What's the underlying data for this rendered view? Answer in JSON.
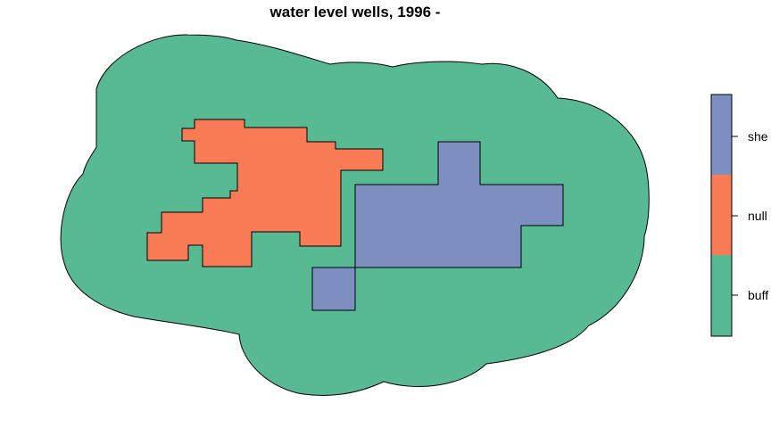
{
  "title": "water level wells,  1996 -",
  "colors": {
    "buffer": "#58BA93",
    "null": "#F97B55",
    "shell": "#7C8FC0",
    "outline": "#000000"
  },
  "legend": {
    "placement": "right",
    "entries": [
      {
        "key": "shell",
        "label": "she"
      },
      {
        "key": "null",
        "label": "null"
      },
      {
        "key": "buffer",
        "label": "buff"
      }
    ]
  }
}
